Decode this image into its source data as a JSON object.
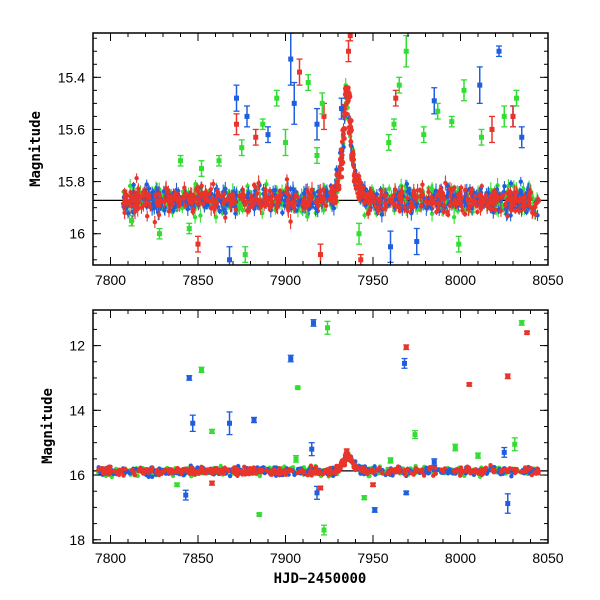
{
  "chart_data": [
    {
      "type": "scatter",
      "panel": "top",
      "title": "",
      "ylabel": "Magnitude",
      "xlabel": "",
      "xlim": [
        7790,
        8050
      ],
      "ylim": [
        16.12,
        15.23
      ],
      "y_inverted": true,
      "x_ticks": [
        7800,
        7850,
        7900,
        7950,
        8000,
        8050
      ],
      "y_ticks": [
        15.4,
        15.6,
        15.8,
        16
      ],
      "y_tick_labels": [
        "15.4",
        "15.6",
        "15.8",
        "16"
      ],
      "reference_line": 15.872,
      "baseline": {
        "x_start": 7807,
        "x_end": 8045,
        "mag": 15.87,
        "scatter": 0.025
      },
      "flare": {
        "x": [
          7928,
          7930,
          7932,
          7933,
          7934,
          7935,
          7936,
          7937,
          7938,
          7940,
          7942,
          7945
        ],
        "y": [
          15.85,
          15.8,
          15.72,
          15.62,
          15.52,
          15.45,
          15.48,
          15.6,
          15.7,
          15.78,
          15.83,
          15.86
        ]
      },
      "series": [
        {
          "color": "#1f5fdf",
          "outliers": [
            {
              "x": 7872,
              "y": 15.48,
              "err": 0.05
            },
            {
              "x": 7878,
              "y": 15.55,
              "err": 0.04
            },
            {
              "x": 7890,
              "y": 15.62,
              "err": 0.03
            },
            {
              "x": 7903,
              "y": 15.33,
              "err": 0.1
            },
            {
              "x": 7905,
              "y": 15.5,
              "err": 0.08
            },
            {
              "x": 7918,
              "y": 15.58,
              "err": 0.06
            },
            {
              "x": 7932,
              "y": 15.52,
              "err": 0.04
            },
            {
              "x": 7985,
              "y": 15.49,
              "err": 0.05
            },
            {
              "x": 8011,
              "y": 15.43,
              "err": 0.07
            },
            {
              "x": 8022,
              "y": 15.3,
              "err": 0.02
            },
            {
              "x": 8030,
              "y": 15.55,
              "err": 0.04
            },
            {
              "x": 8035,
              "y": 15.63,
              "err": 0.04
            },
            {
              "x": 7868,
              "y": 16.1,
              "err": 0.05
            },
            {
              "x": 7960,
              "y": 16.05,
              "err": 0.06
            },
            {
              "x": 7975,
              "y": 16.03,
              "err": 0.05
            }
          ]
        },
        {
          "color": "#e8342a",
          "outliers": [
            {
              "x": 7872,
              "y": 15.58,
              "err": 0.04
            },
            {
              "x": 7883,
              "y": 15.63,
              "err": 0.03
            },
            {
              "x": 7908,
              "y": 15.38,
              "err": 0.05
            },
            {
              "x": 7922,
              "y": 15.55,
              "err": 0.05
            },
            {
              "x": 7936,
              "y": 15.3,
              "err": 0.04
            },
            {
              "x": 7937,
              "y": 15.24,
              "err": 0.02
            },
            {
              "x": 7963,
              "y": 15.48,
              "err": 0.03
            },
            {
              "x": 8018,
              "y": 15.6,
              "err": 0.05
            },
            {
              "x": 8030,
              "y": 15.55,
              "err": 0.04
            },
            {
              "x": 7850,
              "y": 16.04,
              "err": 0.03
            },
            {
              "x": 7920,
              "y": 16.08,
              "err": 0.04
            },
            {
              "x": 7943,
              "y": 16.1,
              "err": 0.02
            }
          ]
        },
        {
          "color": "#33dd33",
          "outliers": [
            {
              "x": 7840,
              "y": 15.72,
              "err": 0.02
            },
            {
              "x": 7852,
              "y": 15.75,
              "err": 0.03
            },
            {
              "x": 7862,
              "y": 15.72,
              "err": 0.02
            },
            {
              "x": 7875,
              "y": 15.67,
              "err": 0.03
            },
            {
              "x": 7887,
              "y": 15.58,
              "err": 0.02
            },
            {
              "x": 7895,
              "y": 15.48,
              "err": 0.03
            },
            {
              "x": 7900,
              "y": 15.65,
              "err": 0.05
            },
            {
              "x": 7913,
              "y": 15.42,
              "err": 0.03
            },
            {
              "x": 7918,
              "y": 15.7,
              "err": 0.03
            },
            {
              "x": 7921,
              "y": 15.5,
              "err": 0.04
            },
            {
              "x": 7959,
              "y": 15.65,
              "err": 0.03
            },
            {
              "x": 7962,
              "y": 15.58,
              "err": 0.02
            },
            {
              "x": 7965,
              "y": 15.43,
              "err": 0.03
            },
            {
              "x": 7969,
              "y": 15.3,
              "err": 0.06
            },
            {
              "x": 7979,
              "y": 15.62,
              "err": 0.03
            },
            {
              "x": 7987,
              "y": 15.53,
              "err": 0.03
            },
            {
              "x": 7995,
              "y": 15.57,
              "err": 0.02
            },
            {
              "x": 8002,
              "y": 15.45,
              "err": 0.04
            },
            {
              "x": 8012,
              "y": 15.63,
              "err": 0.03
            },
            {
              "x": 8025,
              "y": 15.55,
              "err": 0.04
            },
            {
              "x": 8032,
              "y": 15.48,
              "err": 0.03
            },
            {
              "x": 7812,
              "y": 15.95,
              "err": 0.02
            },
            {
              "x": 7828,
              "y": 16.0,
              "err": 0.02
            },
            {
              "x": 7845,
              "y": 15.98,
              "err": 0.02
            },
            {
              "x": 7877,
              "y": 16.08,
              "err": 0.03
            },
            {
              "x": 7942,
              "y": 16.0,
              "err": 0.04
            },
            {
              "x": 7999,
              "y": 16.04,
              "err": 0.03
            }
          ]
        }
      ]
    },
    {
      "type": "scatter",
      "panel": "bottom",
      "title": "",
      "ylabel": "Magnitude",
      "xlabel": "HJD−2450000",
      "xlim": [
        7790,
        8050
      ],
      "ylim": [
        18.1,
        10.9
      ],
      "y_inverted": true,
      "x_ticks": [
        7800,
        7850,
        7900,
        7950,
        8000,
        8050
      ],
      "x_tick_labels": [
        "7800",
        "7850",
        "7900",
        "7950",
        "8000",
        "8050"
      ],
      "y_ticks": [
        12,
        14,
        16,
        18
      ],
      "y_tick_labels": [
        "12",
        "14",
        "16",
        "18"
      ],
      "reference_line": 15.872,
      "baseline": {
        "x_start": 7793,
        "x_end": 8045,
        "mag": 15.88,
        "scatter": 0.06
      },
      "flare": {
        "x": [
          7930,
          7933,
          7935,
          7937,
          7940,
          7945
        ],
        "y": [
          15.8,
          15.6,
          15.4,
          15.5,
          15.75,
          15.85
        ]
      },
      "series": [
        {
          "color": "#1f5fdf",
          "outliers": [
            {
              "x": 7845,
              "y": 13.0,
              "err": 0.07
            },
            {
              "x": 7847,
              "y": 14.4,
              "err": 0.25
            },
            {
              "x": 7868,
              "y": 14.4,
              "err": 0.35
            },
            {
              "x": 7882,
              "y": 14.3,
              "err": 0.08
            },
            {
              "x": 7903,
              "y": 12.4,
              "err": 0.1
            },
            {
              "x": 7916,
              "y": 11.3,
              "err": 0.1
            },
            {
              "x": 7968,
              "y": 12.55,
              "err": 0.15
            },
            {
              "x": 7843,
              "y": 16.62,
              "err": 0.15
            },
            {
              "x": 7918,
              "y": 16.55,
              "err": 0.2
            },
            {
              "x": 7951,
              "y": 17.08,
              "err": 0.07
            },
            {
              "x": 7969,
              "y": 16.55,
              "err": 0.05
            },
            {
              "x": 8027,
              "y": 16.88,
              "err": 0.3
            },
            {
              "x": 7915,
              "y": 15.2,
              "err": 0.2
            },
            {
              "x": 7985,
              "y": 15.6,
              "err": 0.1
            },
            {
              "x": 8025,
              "y": 15.3,
              "err": 0.15
            }
          ]
        },
        {
          "color": "#e8342a",
          "outliers": [
            {
              "x": 7969,
              "y": 12.05,
              "err": 0.07
            },
            {
              "x": 8005,
              "y": 13.2,
              "err": 0.04
            },
            {
              "x": 8027,
              "y": 12.95,
              "err": 0.07
            },
            {
              "x": 8038,
              "y": 11.6,
              "err": 0.04
            },
            {
              "x": 7935,
              "y": 15.25,
              "err": 0.05
            },
            {
              "x": 7858,
              "y": 16.25,
              "err": 0.06
            },
            {
              "x": 7950,
              "y": 16.3,
              "err": 0.05
            },
            {
              "x": 7920,
              "y": 16.4,
              "err": 0.05
            }
          ]
        },
        {
          "color": "#33dd33",
          "outliers": [
            {
              "x": 7852,
              "y": 12.75,
              "err": 0.08
            },
            {
              "x": 7858,
              "y": 14.65,
              "err": 0.06
            },
            {
              "x": 7924,
              "y": 11.45,
              "err": 0.2
            },
            {
              "x": 7907,
              "y": 13.3,
              "err": 0.03
            },
            {
              "x": 7974,
              "y": 14.75,
              "err": 0.12
            },
            {
              "x": 8035,
              "y": 11.3,
              "err": 0.07
            },
            {
              "x": 8031,
              "y": 15.05,
              "err": 0.2
            },
            {
              "x": 7997,
              "y": 15.15,
              "err": 0.1
            },
            {
              "x": 7885,
              "y": 17.22,
              "err": 0.04
            },
            {
              "x": 7922,
              "y": 17.7,
              "err": 0.15
            },
            {
              "x": 7945,
              "y": 16.7,
              "err": 0.06
            },
            {
              "x": 7838,
              "y": 16.3,
              "err": 0.05
            },
            {
              "x": 7906,
              "y": 15.5,
              "err": 0.1
            },
            {
              "x": 7960,
              "y": 15.55,
              "err": 0.08
            },
            {
              "x": 8010,
              "y": 15.4,
              "err": 0.08
            }
          ]
        }
      ]
    }
  ]
}
